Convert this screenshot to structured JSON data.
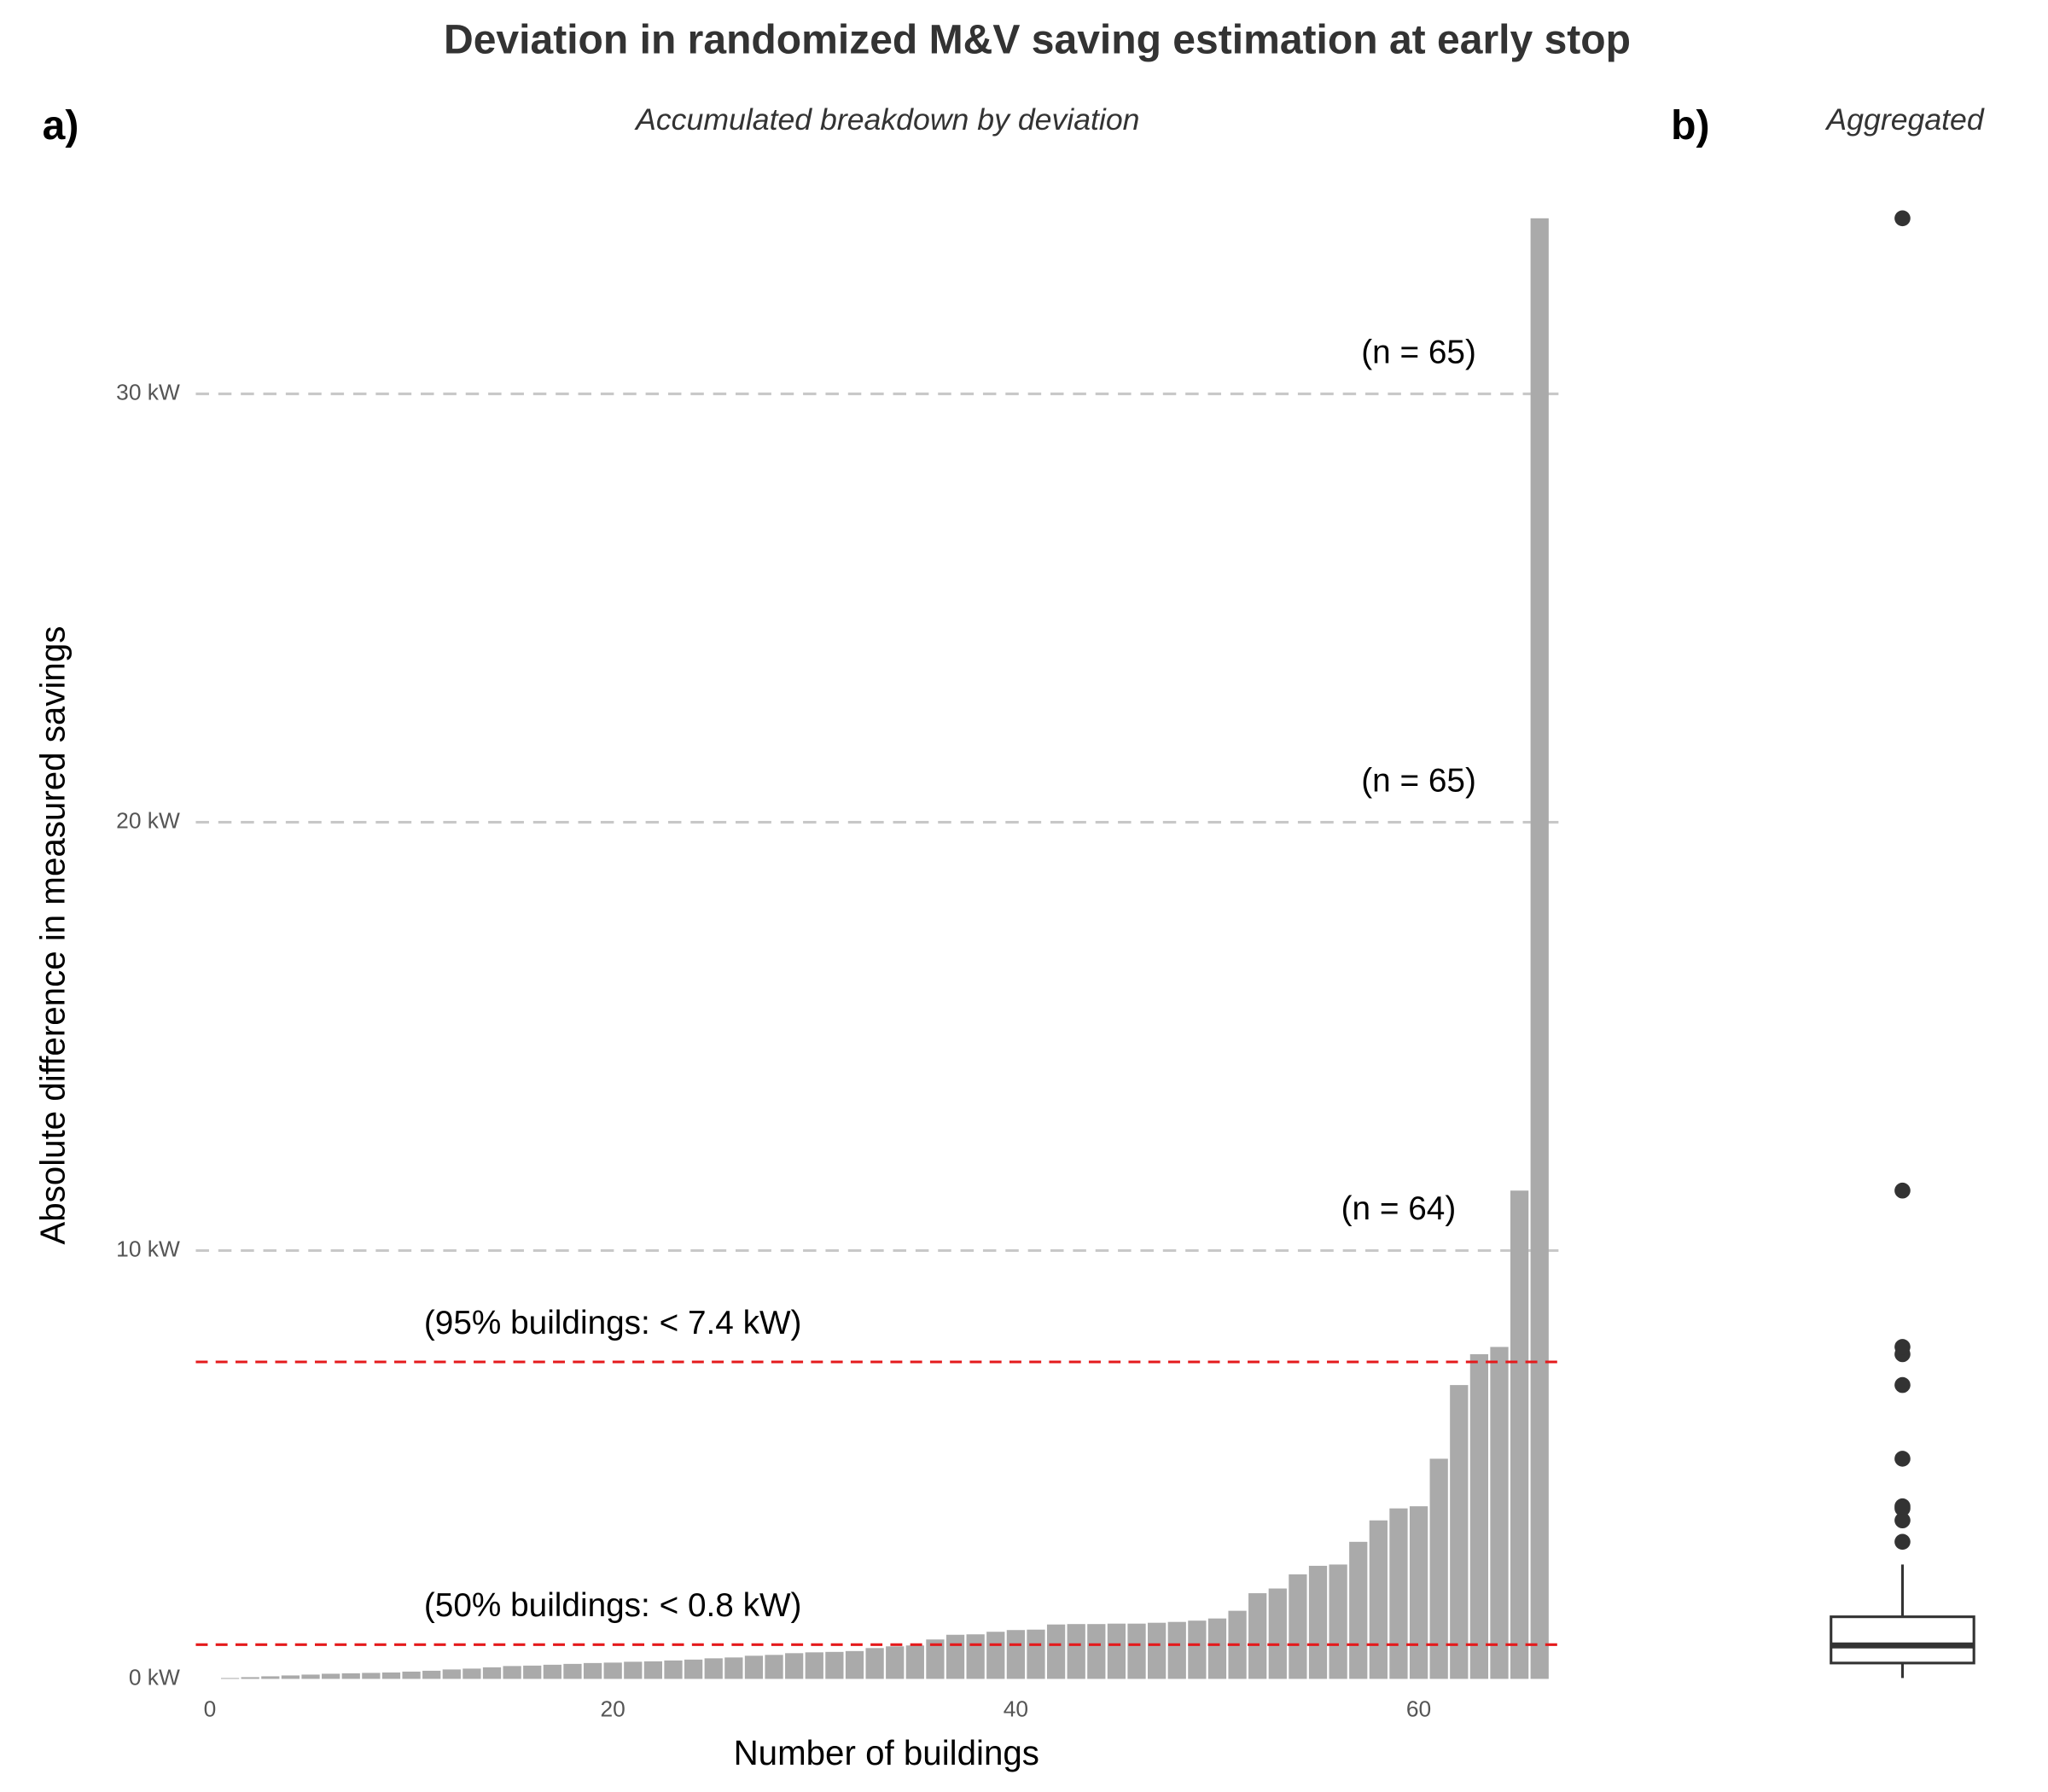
{
  "chart_data": [
    {
      "type": "bar",
      "title": "Deviation in randomized M&V saving estimation at early stop",
      "panel_label": "a)",
      "subtitle": "Accumulated breakdown by deviation",
      "xlabel": "Number of buildings",
      "ylabel": "Absolute difference in measured savings",
      "x": [
        1,
        2,
        3,
        4,
        5,
        6,
        7,
        8,
        9,
        10,
        11,
        12,
        13,
        14,
        15,
        16,
        17,
        18,
        19,
        20,
        21,
        22,
        23,
        24,
        25,
        26,
        27,
        28,
        29,
        30,
        31,
        32,
        33,
        34,
        35,
        36,
        37,
        38,
        39,
        40,
        41,
        42,
        43,
        44,
        45,
        46,
        47,
        48,
        49,
        50,
        51,
        52,
        53,
        54,
        55,
        56,
        57,
        58,
        59,
        60,
        61,
        62,
        63,
        64,
        65,
        66
      ],
      "values": [
        0.02,
        0.04,
        0.06,
        0.08,
        0.1,
        0.12,
        0.13,
        0.14,
        0.15,
        0.17,
        0.19,
        0.22,
        0.24,
        0.27,
        0.3,
        0.31,
        0.33,
        0.35,
        0.37,
        0.38,
        0.4,
        0.41,
        0.43,
        0.45,
        0.48,
        0.5,
        0.54,
        0.56,
        0.6,
        0.62,
        0.63,
        0.65,
        0.72,
        0.76,
        0.78,
        0.92,
        1.03,
        1.04,
        1.1,
        1.14,
        1.15,
        1.27,
        1.28,
        1.28,
        1.29,
        1.29,
        1.31,
        1.33,
        1.36,
        1.41,
        1.59,
        2.0,
        2.11,
        2.44,
        2.64,
        2.67,
        3.2,
        3.7,
        3.98,
        4.03,
        5.14,
        6.86,
        7.58,
        7.75,
        11.4,
        34.1
      ],
      "color": "#aaaaaa",
      "xlim": [
        -0.7,
        67.2
      ],
      "xticks": [
        0,
        20,
        40,
        60
      ],
      "ylim": [
        0,
        34.1
      ],
      "yticks": [
        {
          "value": 0,
          "label": "0 kW"
        },
        {
          "value": 10,
          "label": "10 kW"
        },
        {
          "value": 20,
          "label": "20 kW"
        },
        {
          "value": 30,
          "label": "30 kW"
        }
      ],
      "grid": true,
      "grid_color": "#c8c8c8",
      "reference_lines": [
        {
          "value": 7.4,
          "label": "(95% buildings: < 7.4 kW)",
          "x": 20
        },
        {
          "value": 0.8,
          "label": "(50% buildings: < 0.8 kW)",
          "x": 20
        }
      ],
      "reference_color": "#e41a1c",
      "annotations": [
        {
          "text": "(n = 65)",
          "x": 60,
          "y": 30
        },
        {
          "text": "(n = 65)",
          "x": 60,
          "y": 20
        },
        {
          "text": "(n = 64)",
          "x": 59,
          "y": 10
        }
      ]
    },
    {
      "type": "boxplot",
      "panel_label": "b)",
      "subtitle": "Aggregated",
      "ylim": [
        0,
        34.1
      ],
      "whisker_low": 0.02,
      "q1": 0.37,
      "median": 0.78,
      "q3": 1.45,
      "whisker_high": 2.67,
      "outliers": [
        3.2,
        3.7,
        3.98,
        4.03,
        5.14,
        6.86,
        7.58,
        7.75,
        11.4,
        34.1
      ],
      "color": "#333333"
    }
  ]
}
